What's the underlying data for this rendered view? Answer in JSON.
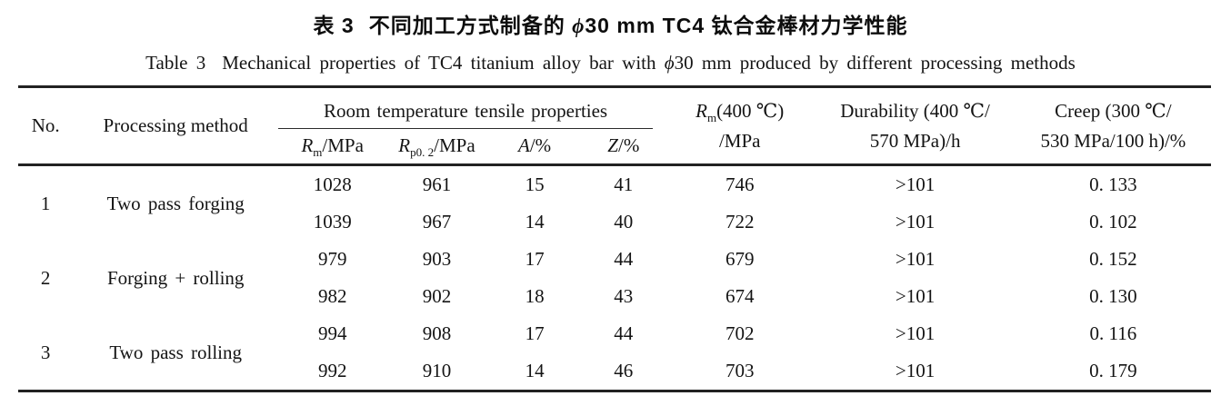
{
  "caption_zh": {
    "label": "表 3",
    "pre": "不同加工方式制备的 ",
    "phi": "ϕ",
    "post": "30 mm TC4 钛合金棒材力学性能"
  },
  "caption_en": {
    "label": "Table 3",
    "pre": "Mechanical properties of TC4 titanium alloy bar with ",
    "phi": "ϕ",
    "post": "30 mm produced by different processing methods"
  },
  "table": {
    "headers": {
      "no": "No.",
      "method": "Processing method",
      "tensile_group": "Room temperature tensile properties",
      "col_rm": {
        "sym": "R",
        "sub": "m",
        "rest": "/MPa"
      },
      "col_rp02": {
        "sym": "R",
        "sub": "p0. 2",
        "rest": "/MPa"
      },
      "col_a": {
        "sym": "A",
        "rest": "/%"
      },
      "col_z": {
        "sym": "Z",
        "rest": "/%"
      },
      "col_rm400": {
        "sym": "R",
        "sub": "m",
        "rest": "(400 ℃)",
        "line2": "/MPa"
      },
      "col_durability": {
        "line1": "Durability (400 ℃/",
        "line2": "570 MPa)/h"
      },
      "col_creep": {
        "line1": "Creep (300 ℃/",
        "line2": "530 MPa/100 h)/%"
      }
    },
    "groups": [
      {
        "no": "1",
        "method": "Two pass forging",
        "rows": [
          [
            "1028",
            "961",
            "15",
            "41",
            "746",
            ">101",
            "0. 133"
          ],
          [
            "1039",
            "967",
            "14",
            "40",
            "722",
            ">101",
            "0. 102"
          ]
        ]
      },
      {
        "no": "2",
        "method": "Forging + rolling",
        "rows": [
          [
            "979",
            "903",
            "17",
            "44",
            "679",
            ">101",
            "0. 152"
          ],
          [
            "982",
            "902",
            "18",
            "43",
            "674",
            ">101",
            "0. 130"
          ]
        ]
      },
      {
        "no": "3",
        "method": "Two pass rolling",
        "rows": [
          [
            "994",
            "908",
            "17",
            "44",
            "702",
            ">101",
            "0. 116"
          ],
          [
            "992",
            "910",
            "14",
            "46",
            "703",
            ">101",
            "0. 179"
          ]
        ]
      }
    ],
    "colors": {
      "rule": "#222222",
      "text": "#141414"
    }
  }
}
